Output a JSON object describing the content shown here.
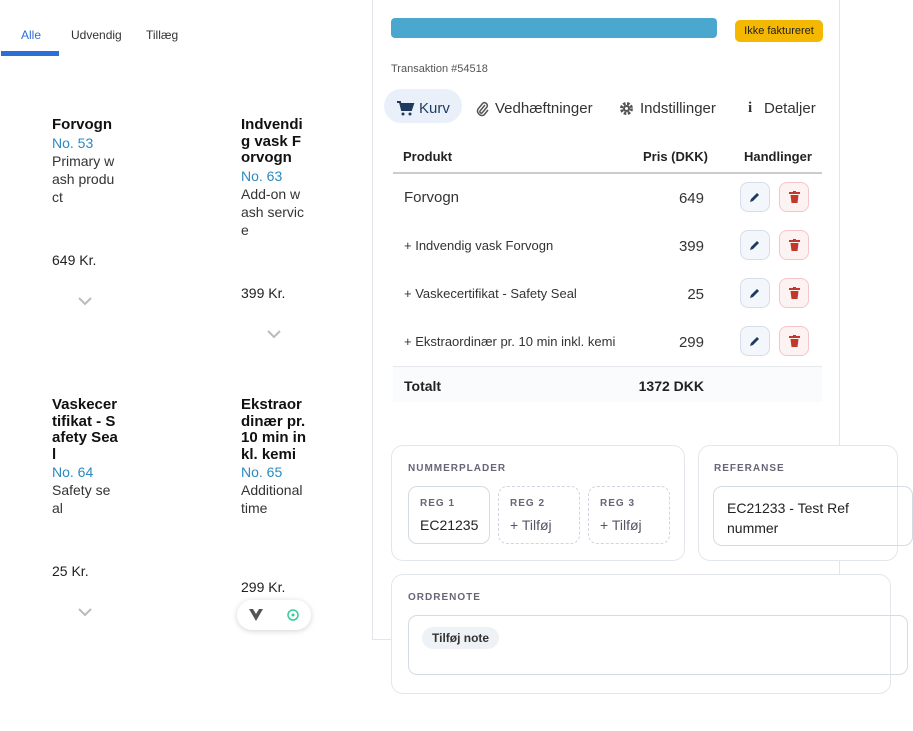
{
  "tabs": [
    "Alle",
    "Udvendig",
    "Tillæg"
  ],
  "products": [
    {
      "name": "Forvogn",
      "number": "No. 53",
      "description": "Primary wash product",
      "price": "649 Kr."
    },
    {
      "name": "Indvendig vask Forvogn",
      "number": "No. 63",
      "description": "Add-on wash service",
      "price": "399 Kr."
    },
    {
      "name": "Vaskecertifikat - Safety Seal",
      "number": "No. 64",
      "description": "Safety seal",
      "price": "25 Kr."
    },
    {
      "name": "Ekstraordinær pr. 10 min inkl. kemi",
      "number": "No. 65",
      "description": "Additional time",
      "price": "299 Kr."
    }
  ],
  "panel": {
    "status": "Ikke faktureret",
    "transaction": "Transaktion #54518",
    "tabs": [
      "Kurv",
      "Vedhæftninger",
      "Indstillinger",
      "Detaljer"
    ],
    "table": {
      "headers": [
        "Produkt",
        "Pris (DKK)",
        "Handlinger"
      ],
      "rows": [
        [
          "Forvogn",
          649
        ],
        [
          "+ Indvendig vask Forvogn",
          399
        ],
        [
          "+ Vaskecertifikat - Safety Seal",
          25
        ],
        [
          "+ Ekstraordinær pr. 10 min inkl. kemi",
          299
        ]
      ],
      "total_label": "Totalt",
      "total": "1372 DKK"
    },
    "plates": {
      "title": "NUMMERPLADER",
      "slots": [
        {
          "label": "REG 1",
          "value": "EC21235"
        },
        {
          "label": "REG 2",
          "value": "+ Tilføj"
        },
        {
          "label": "REG 3",
          "value": "+ Tilføj"
        }
      ]
    },
    "reference": {
      "title": "REFERANSE",
      "value": "EC21233 - Test Ref nummer"
    },
    "note": {
      "title": "ORDRENOTE",
      "button": "Tilføj note"
    }
  }
}
